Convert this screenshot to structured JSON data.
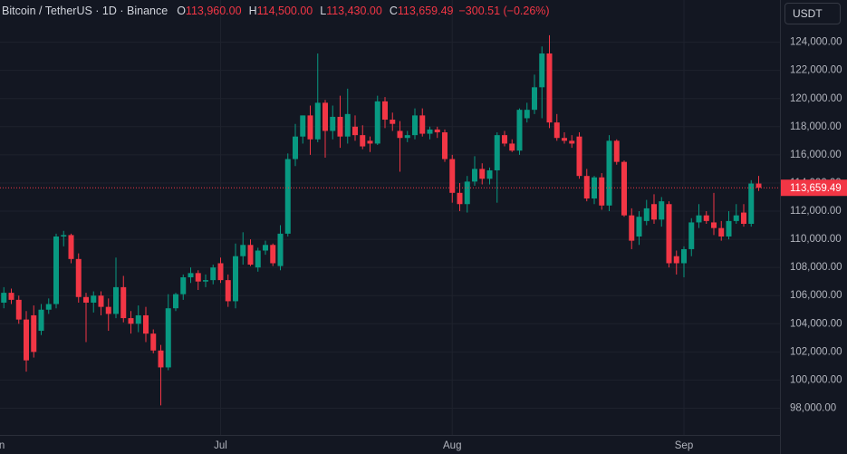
{
  "chart_data": {
    "type": "candlestick",
    "legend": {
      "symbol": "Bitcoin / TetherUS · 1D · Binance",
      "items": [
        {
          "key": "O",
          "label": "113,960.00"
        },
        {
          "key": "H",
          "label": "114,500.00"
        },
        {
          "key": "L",
          "label": "113,430.00"
        },
        {
          "key": "C",
          "label": "113,659.49"
        }
      ],
      "change": "−300.51 (−0.26%)"
    },
    "unit_button": "USDT",
    "categories": [
      "Jun",
      null,
      null,
      null,
      null,
      null,
      null,
      null,
      null,
      null,
      null,
      null,
      null,
      null,
      null,
      null,
      null,
      null,
      null,
      null,
      null,
      null,
      null,
      null,
      null,
      null,
      null,
      null,
      null,
      null,
      "Jul",
      null,
      null,
      null,
      null,
      null,
      null,
      null,
      null,
      null,
      null,
      null,
      null,
      null,
      null,
      null,
      null,
      null,
      null,
      null,
      null,
      null,
      null,
      null,
      null,
      null,
      null,
      null,
      null,
      null,
      null,
      "Aug",
      null,
      null,
      null,
      null,
      null,
      null,
      null,
      null,
      null,
      null,
      null,
      null,
      null,
      null,
      null,
      null,
      null,
      null,
      null,
      null,
      null,
      null,
      null,
      null,
      null,
      null,
      null,
      null,
      null,
      null,
      "Sep",
      null,
      null,
      null,
      null,
      null,
      null,
      null,
      null,
      null,
      null
    ],
    "open": [
      105300,
      105500,
      106200,
      105700,
      104300,
      104600,
      103500,
      105000,
      105400,
      110200,
      110300,
      108600,
      105900,
      105500,
      106000,
      105200,
      104700,
      106600,
      104400,
      104000,
      104600,
      103300,
      102100,
      100900,
      105100,
      106100,
      107300,
      107600,
      107000,
      107100,
      108300,
      107100,
      105600,
      108800,
      109600,
      108000,
      109200,
      109600,
      108100,
      110400,
      115700,
      117300,
      118800,
      117100,
      119700,
      117700,
      118700,
      117300,
      118000,
      117400,
      117000,
      116800,
      119800,
      118500,
      117700,
      117200,
      117400,
      118800,
      117500,
      117800,
      117600,
      115700,
      113300,
      112500,
      114100,
      115000,
      114300,
      114900,
      117400,
      116800,
      116300,
      118600,
      119200,
      120800,
      123200,
      118300,
      117200,
      117000,
      117300,
      114500,
      112900,
      114400,
      112400,
      117000,
      115500,
      111700,
      110200,
      111300,
      112500,
      111400,
      112500,
      108800,
      108300,
      109300,
      111200,
      111700,
      111200,
      110800,
      110200,
      111300,
      111900,
      111100,
      113960
    ],
    "high": [
      105900,
      106600,
      106500,
      106000,
      104900,
      105300,
      105400,
      105800,
      110400,
      110600,
      110400,
      109000,
      106200,
      106300,
      106300,
      105800,
      108700,
      107400,
      104900,
      105300,
      105200,
      103600,
      102500,
      106100,
      106200,
      107500,
      108000,
      107800,
      107500,
      108200,
      108700,
      107500,
      109700,
      110500,
      110000,
      109400,
      109900,
      109700,
      111000,
      116100,
      118200,
      118800,
      119500,
      123200,
      119900,
      119500,
      120200,
      120700,
      118800,
      118100,
      117300,
      120200,
      120100,
      119000,
      118400,
      117700,
      119300,
      119300,
      118000,
      118000,
      117800,
      116000,
      114000,
      114500,
      115900,
      115400,
      115100,
      117600,
      117700,
      117100,
      119300,
      119700,
      121700,
      123700,
      124500,
      118900,
      117600,
      117400,
      117600,
      115000,
      114500,
      114700,
      117400,
      117100,
      115600,
      112200,
      112000,
      112800,
      113200,
      113000,
      112700,
      109200,
      109500,
      111500,
      112500,
      112000,
      113300,
      111300,
      112000,
      112500,
      112500,
      114200,
      114500
    ],
    "low": [
      104600,
      105100,
      105400,
      104000,
      100600,
      101600,
      103200,
      104700,
      105100,
      109500,
      108300,
      105500,
      102700,
      104800,
      104600,
      103500,
      104400,
      104100,
      103300,
      103400,
      102700,
      101900,
      98200,
      100700,
      104900,
      105700,
      106900,
      106400,
      106600,
      106800,
      106900,
      105200,
      105100,
      108200,
      108100,
      107700,
      108900,
      108100,
      107800,
      110200,
      115200,
      116800,
      116000,
      116900,
      115800,
      117100,
      116500,
      116800,
      117000,
      116400,
      116200,
      116700,
      117900,
      117700,
      114800,
      116900,
      117100,
      117300,
      117100,
      117200,
      115500,
      112600,
      112000,
      111900,
      113800,
      113900,
      113900,
      112600,
      116600,
      116200,
      116000,
      118300,
      118900,
      118600,
      117900,
      117000,
      116800,
      116500,
      114300,
      112700,
      112500,
      112100,
      112000,
      115300,
      111600,
      109300,
      109600,
      111000,
      111100,
      110900,
      108000,
      107500,
      107300,
      108800,
      110800,
      111100,
      110300,
      109900,
      110000,
      111100,
      110900,
      110900,
      113430
    ],
    "close": [
      105500,
      106200,
      105700,
      104300,
      101400,
      102000,
      105000,
      105400,
      110200,
      110300,
      108600,
      105900,
      105500,
      106000,
      105200,
      104700,
      106600,
      104400,
      104000,
      104600,
      103300,
      102100,
      100900,
      105100,
      106100,
      107300,
      107600,
      107000,
      107100,
      108000,
      107100,
      105600,
      108800,
      109600,
      108200,
      109200,
      109600,
      108300,
      110400,
      115700,
      117300,
      118800,
      117100,
      119700,
      117700,
      118700,
      117300,
      118900,
      117400,
      116600,
      116800,
      119800,
      118500,
      118200,
      117200,
      117400,
      118800,
      117500,
      117800,
      117600,
      115700,
      113300,
      112500,
      114100,
      115000,
      114300,
      114900,
      117400,
      116800,
      116300,
      119200,
      119200,
      120800,
      123200,
      118300,
      117200,
      117000,
      116800,
      114500,
      112900,
      114400,
      112400,
      117000,
      115500,
      111700,
      109900,
      111600,
      112200,
      111400,
      112700,
      108300,
      108300,
      109300,
      111200,
      111700,
      111300,
      110800,
      110200,
      111300,
      111700,
      111100,
      113960,
      113659.49
    ],
    "up_color": "#089981",
    "down_color": "#f23645",
    "ylim": [
      96100,
      127000
    ],
    "yticks": [
      {
        "value": 98000,
        "label": "98,000.00"
      },
      {
        "value": 100000,
        "label": "100,000.00"
      },
      {
        "value": 102000,
        "label": "102,000.00"
      },
      {
        "value": 104000,
        "label": "104,000.00"
      },
      {
        "value": 106000,
        "label": "106,000.00"
      },
      {
        "value": 108000,
        "label": "108,000.00"
      },
      {
        "value": 110000,
        "label": "110,000.00"
      },
      {
        "value": 112000,
        "label": "112,000.00"
      },
      {
        "value": 114000,
        "label": "114,000.00"
      },
      {
        "value": 116000,
        "label": "116,000.00"
      },
      {
        "value": 118000,
        "label": "118,000.00"
      },
      {
        "value": 120000,
        "label": "120,000.00"
      },
      {
        "value": 122000,
        "label": "122,000.00"
      },
      {
        "value": 124000,
        "label": "124,000.00"
      }
    ],
    "last_price": {
      "value": 113659.49,
      "label": "113,659.49"
    },
    "grid": true
  }
}
